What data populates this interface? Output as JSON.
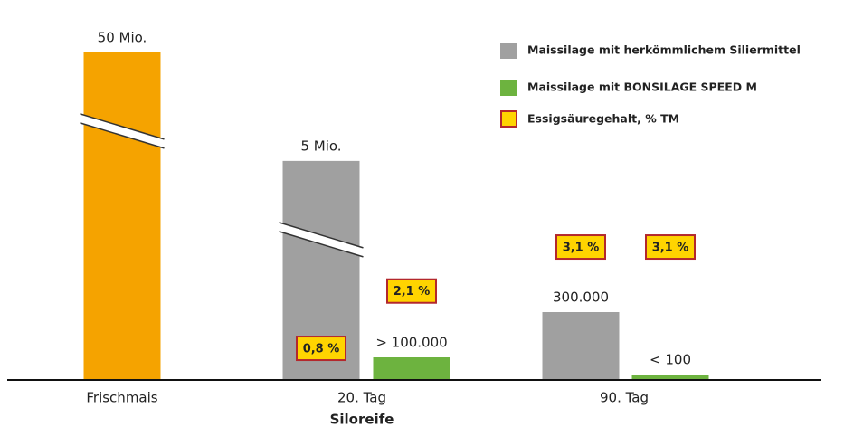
{
  "chart_data": {
    "type": "bar",
    "x_label": "Siloreife",
    "categories": [
      "Frischmais",
      "20. Tag",
      "90. Tag"
    ],
    "fresh": {
      "color": "#f5a300",
      "values": [
        50000000,
        null,
        null
      ],
      "value_labels": [
        "50 Mio.",
        null,
        null
      ]
    },
    "series": [
      {
        "name": "Maissilage mit herkömmlichem Siliermittel",
        "color": "#a0a0a0",
        "values": [
          null,
          5000000,
          300000
        ],
        "value_labels": [
          null,
          "5 Mio.",
          "300.000"
        ],
        "acid_values": [
          null,
          0.8,
          3.1
        ],
        "acid_labels": [
          null,
          "0,8 %",
          "3,1 %"
        ]
      },
      {
        "name": "Maissilage mit BONSILAGE SPEED M",
        "color": "#6db33f",
        "values": [
          null,
          100000,
          100
        ],
        "value_labels": [
          null,
          "> 100.000",
          "< 100"
        ],
        "acid_values": [
          null,
          2.1,
          3.1
        ],
        "acid_labels": [
          null,
          "2,1 %",
          "3,1 %"
        ]
      }
    ],
    "acid_legend": {
      "name": "Essigsäuregehalt, % TM",
      "color": "#ffd400",
      "border": "#b3282d"
    }
  }
}
